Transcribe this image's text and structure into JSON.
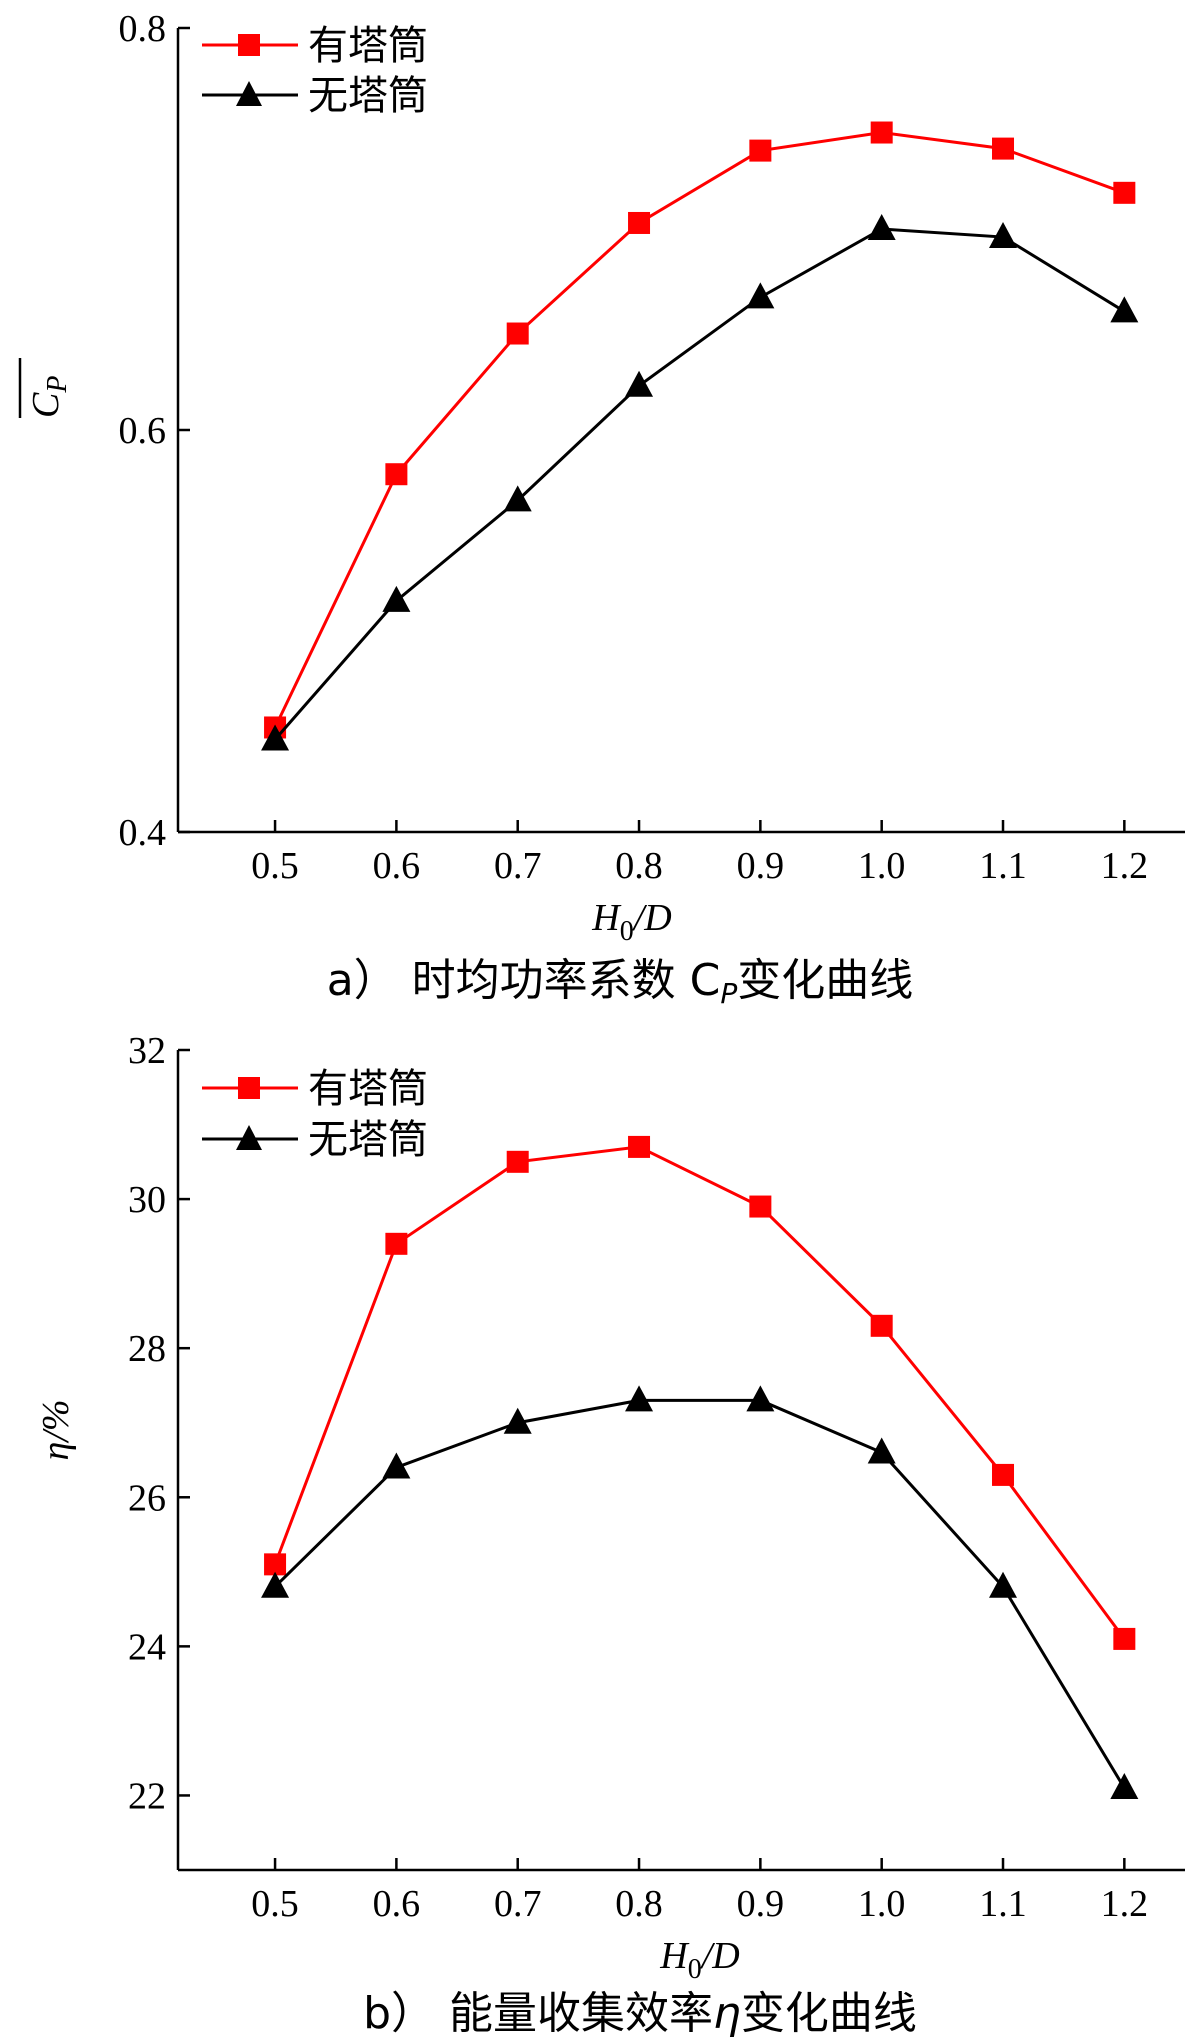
{
  "chart_data": [
    {
      "type": "line",
      "caption": "a）  时均功率系数 C",
      "caption_sub": "P",
      "caption_tail": "变化曲线",
      "xlabel": "H",
      "xlabel_sub": "0",
      "xlabel_tail": "/D",
      "ylabel": "C",
      "ylabel_sub": "P",
      "x": [
        0.5,
        0.6,
        0.7,
        0.8,
        0.9,
        1.0,
        1.1,
        1.2
      ],
      "xtick_labels": [
        "0.5",
        "0.6",
        "0.7",
        "0.8",
        "0.9",
        "1.0",
        "1.1",
        "1.2"
      ],
      "xlim": [
        0.42,
        1.25
      ],
      "ylim": [
        0.4,
        0.8
      ],
      "yticks": [
        0.4,
        0.6,
        0.8
      ],
      "ytick_labels": [
        "0.4",
        "0.6",
        "0.8"
      ],
      "series": [
        {
          "name": "有塔筒",
          "color": "#ff0000",
          "marker": "square",
          "values": [
            0.452,
            0.578,
            0.648,
            0.703,
            0.739,
            0.748,
            0.74,
            0.718
          ]
        },
        {
          "name": "无塔筒",
          "color": "#000000",
          "marker": "triangle",
          "values": [
            0.446,
            0.515,
            0.565,
            0.622,
            0.666,
            0.7,
            0.696,
            0.659
          ]
        }
      ],
      "legend_position": "top-left"
    },
    {
      "type": "line",
      "caption": "b）  能量收集效率",
      "caption_sym": "η",
      "caption_tail": "变化曲线",
      "xlabel": "H",
      "xlabel_sub": "0",
      "xlabel_tail": "/D",
      "ylabel": "η/%",
      "x": [
        0.5,
        0.6,
        0.7,
        0.8,
        0.9,
        1.0,
        1.1,
        1.2
      ],
      "xtick_labels": [
        "0.5",
        "0.6",
        "0.7",
        "0.8",
        "0.9",
        "1.0",
        "1.1",
        "1.2"
      ],
      "xlim": [
        0.42,
        1.25
      ],
      "ylim": [
        21,
        32
      ],
      "yticks": [
        22,
        24,
        26,
        28,
        30,
        32
      ],
      "ytick_labels": [
        "22",
        "24",
        "26",
        "28",
        "30",
        "32"
      ],
      "series": [
        {
          "name": "有塔筒",
          "color": "#ff0000",
          "marker": "square",
          "values": [
            25.1,
            29.4,
            30.5,
            30.7,
            29.9,
            28.3,
            26.3,
            24.1
          ]
        },
        {
          "name": "无塔筒",
          "color": "#000000",
          "marker": "triangle",
          "values": [
            24.8,
            26.4,
            27.0,
            27.3,
            27.3,
            26.6,
            24.8,
            22.1
          ]
        }
      ],
      "legend_position": "top-left"
    }
  ]
}
